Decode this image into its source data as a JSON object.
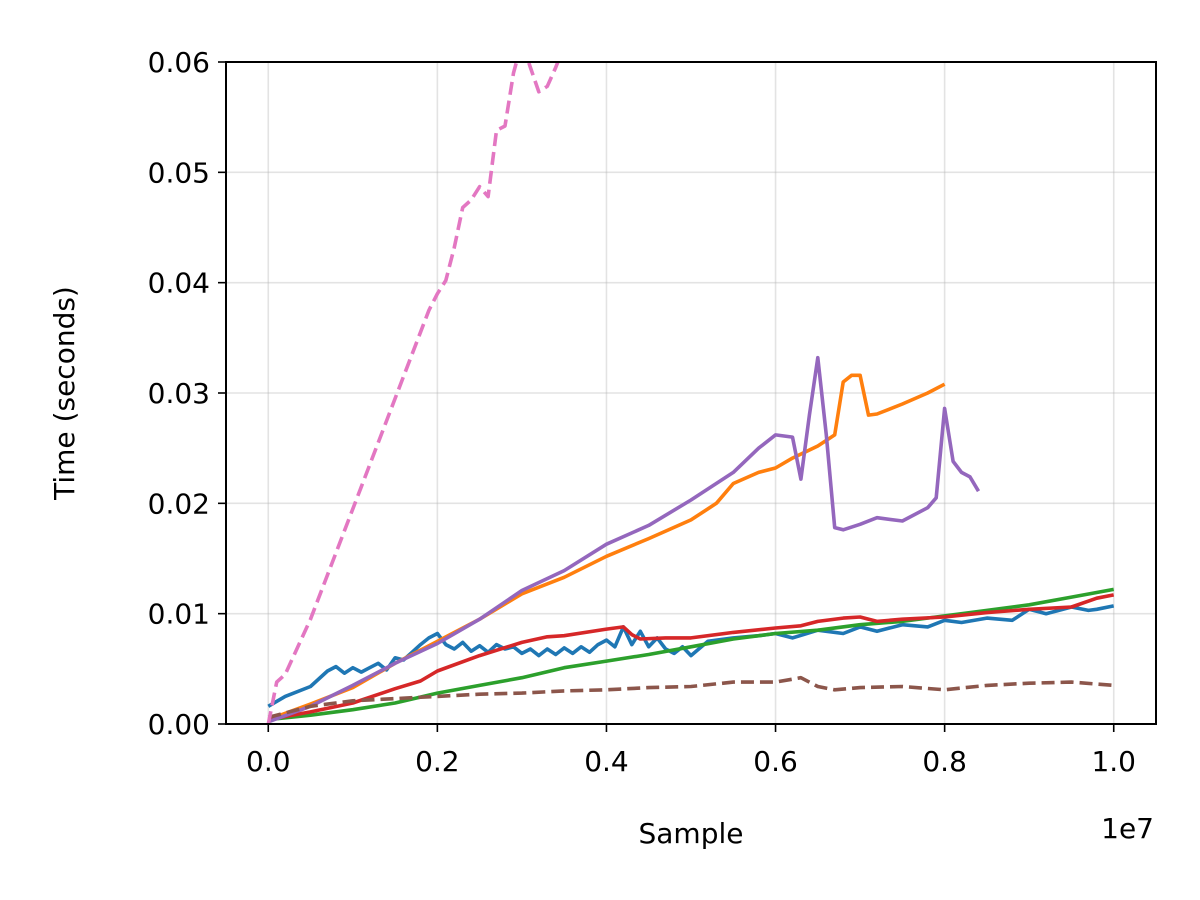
{
  "chart_data": {
    "type": "line",
    "title": "",
    "xlabel": "Sample",
    "ylabel": "Time (seconds)",
    "x_offset_label": "1e7",
    "xlim": [
      -0.05,
      1.05
    ],
    "ylim": [
      0.0,
      0.06
    ],
    "x_ticks": [
      0.0,
      0.2,
      0.4,
      0.6,
      0.8,
      1.0
    ],
    "x_tick_labels": [
      "0.0",
      "0.2",
      "0.4",
      "0.6",
      "0.8",
      "1.0"
    ],
    "y_ticks": [
      0.0,
      0.01,
      0.02,
      0.03,
      0.04,
      0.05,
      0.06
    ],
    "y_tick_labels": [
      "0.00",
      "0.01",
      "0.02",
      "0.03",
      "0.04",
      "0.05",
      "0.06"
    ],
    "grid": true,
    "legend": "none",
    "series": [
      {
        "color": "#1f77b4",
        "dash": "solid",
        "x": [
          0.0,
          0.02,
          0.05,
          0.07,
          0.08,
          0.09,
          0.1,
          0.11,
          0.12,
          0.13,
          0.14,
          0.15,
          0.16,
          0.17,
          0.18,
          0.19,
          0.2,
          0.21,
          0.22,
          0.23,
          0.24,
          0.25,
          0.26,
          0.27,
          0.28,
          0.29,
          0.3,
          0.31,
          0.32,
          0.33,
          0.34,
          0.35,
          0.36,
          0.37,
          0.38,
          0.39,
          0.4,
          0.41,
          0.42,
          0.43,
          0.44,
          0.45,
          0.46,
          0.47,
          0.48,
          0.49,
          0.5,
          0.52,
          0.55,
          0.58,
          0.6,
          0.62,
          0.65,
          0.68,
          0.7,
          0.72,
          0.75,
          0.78,
          0.8,
          0.82,
          0.85,
          0.88,
          0.9,
          0.92,
          0.95,
          0.97,
          0.98,
          1.0
        ],
        "y": [
          0.0016,
          0.0025,
          0.0034,
          0.0048,
          0.0052,
          0.0046,
          0.0051,
          0.0047,
          0.0051,
          0.0055,
          0.0049,
          0.006,
          0.0058,
          0.0065,
          0.0072,
          0.0078,
          0.0082,
          0.0072,
          0.0068,
          0.0074,
          0.0066,
          0.0071,
          0.0065,
          0.0072,
          0.0068,
          0.007,
          0.0064,
          0.0068,
          0.0062,
          0.0068,
          0.0063,
          0.0069,
          0.0064,
          0.007,
          0.0065,
          0.0072,
          0.0076,
          0.007,
          0.0088,
          0.0072,
          0.0084,
          0.007,
          0.0078,
          0.0068,
          0.0064,
          0.007,
          0.0062,
          0.0075,
          0.0078,
          0.008,
          0.0082,
          0.0078,
          0.0085,
          0.0082,
          0.0088,
          0.0084,
          0.009,
          0.0088,
          0.0094,
          0.0092,
          0.0096,
          0.0094,
          0.0104,
          0.01,
          0.0106,
          0.0103,
          0.0104,
          0.0107
        ]
      },
      {
        "color": "#ff7f0e",
        "dash": "solid",
        "x": [
          0.0,
          0.05,
          0.1,
          0.15,
          0.2,
          0.25,
          0.3,
          0.35,
          0.4,
          0.45,
          0.5,
          0.53,
          0.55,
          0.58,
          0.6,
          0.62,
          0.65,
          0.67,
          0.68,
          0.69,
          0.7,
          0.71,
          0.72,
          0.75,
          0.78,
          0.8
        ],
        "y": [
          0.0004,
          0.0018,
          0.0033,
          0.0055,
          0.0075,
          0.0095,
          0.0118,
          0.0133,
          0.0152,
          0.0168,
          0.0185,
          0.02,
          0.0218,
          0.0228,
          0.0232,
          0.0241,
          0.0252,
          0.0262,
          0.031,
          0.0316,
          0.0316,
          0.028,
          0.0281,
          0.029,
          0.03,
          0.0308
        ]
      },
      {
        "color": "#2ca02c",
        "dash": "solid",
        "x": [
          0.0,
          0.05,
          0.1,
          0.15,
          0.2,
          0.25,
          0.3,
          0.35,
          0.4,
          0.45,
          0.5,
          0.55,
          0.6,
          0.65,
          0.7,
          0.75,
          0.8,
          0.85,
          0.9,
          0.95,
          1.0
        ],
        "y": [
          0.0004,
          0.0008,
          0.0013,
          0.0019,
          0.0028,
          0.0035,
          0.0042,
          0.0051,
          0.0057,
          0.0063,
          0.007,
          0.0077,
          0.0082,
          0.0085,
          0.009,
          0.0093,
          0.0098,
          0.0103,
          0.0108,
          0.0115,
          0.0122
        ]
      },
      {
        "color": "#d62728",
        "dash": "solid",
        "x": [
          0.0,
          0.05,
          0.1,
          0.15,
          0.18,
          0.2,
          0.25,
          0.3,
          0.33,
          0.35,
          0.4,
          0.42,
          0.43,
          0.44,
          0.47,
          0.5,
          0.55,
          0.6,
          0.63,
          0.65,
          0.68,
          0.7,
          0.72,
          0.75,
          0.8,
          0.85,
          0.9,
          0.95,
          0.98,
          1.0
        ],
        "y": [
          0.0004,
          0.0011,
          0.0019,
          0.0032,
          0.0039,
          0.0048,
          0.0062,
          0.0074,
          0.0079,
          0.008,
          0.0086,
          0.0088,
          0.0081,
          0.0077,
          0.0078,
          0.0078,
          0.0083,
          0.0087,
          0.0089,
          0.0093,
          0.0096,
          0.0097,
          0.0093,
          0.0095,
          0.0097,
          0.0101,
          0.0104,
          0.0106,
          0.0114,
          0.0117
        ]
      },
      {
        "color": "#9467bd",
        "dash": "solid",
        "x": [
          0.0,
          0.05,
          0.1,
          0.15,
          0.2,
          0.25,
          0.3,
          0.35,
          0.4,
          0.45,
          0.5,
          0.55,
          0.58,
          0.6,
          0.62,
          0.63,
          0.64,
          0.65,
          0.66,
          0.67,
          0.68,
          0.7,
          0.72,
          0.75,
          0.78,
          0.79,
          0.8,
          0.81,
          0.82,
          0.83,
          0.84
        ],
        "y": [
          0.0002,
          0.0016,
          0.0035,
          0.0055,
          0.0073,
          0.0095,
          0.0121,
          0.0139,
          0.0163,
          0.018,
          0.0203,
          0.0228,
          0.025,
          0.0262,
          0.026,
          0.0222,
          0.028,
          0.0332,
          0.0262,
          0.0178,
          0.0176,
          0.0181,
          0.0187,
          0.0184,
          0.0196,
          0.0205,
          0.0286,
          0.0238,
          0.0228,
          0.0224,
          0.0211
        ]
      },
      {
        "color": "#8c564b",
        "dash": "dashed",
        "x": [
          0.0,
          0.05,
          0.1,
          0.15,
          0.2,
          0.25,
          0.3,
          0.35,
          0.4,
          0.45,
          0.5,
          0.55,
          0.6,
          0.63,
          0.65,
          0.67,
          0.7,
          0.75,
          0.8,
          0.85,
          0.9,
          0.95,
          1.0
        ],
        "y": [
          0.0006,
          0.0016,
          0.0021,
          0.0023,
          0.0025,
          0.0027,
          0.0028,
          0.003,
          0.0031,
          0.0033,
          0.0034,
          0.0038,
          0.0038,
          0.0042,
          0.0034,
          0.0031,
          0.0033,
          0.0034,
          0.0031,
          0.0035,
          0.0037,
          0.0038,
          0.0035
        ]
      },
      {
        "color": "#e377c2",
        "dash": "dashed",
        "x": [
          0.0,
          0.01,
          0.02,
          0.05,
          0.08,
          0.11,
          0.13,
          0.15,
          0.17,
          0.19,
          0.2,
          0.21,
          0.22,
          0.23,
          0.24,
          0.25,
          0.26,
          0.27,
          0.28,
          0.29,
          0.3,
          0.31,
          0.32,
          0.33,
          0.34,
          0.345
        ],
        "y": [
          0.0,
          0.0038,
          0.0045,
          0.0095,
          0.0155,
          0.0215,
          0.0255,
          0.0295,
          0.0335,
          0.0375,
          0.039,
          0.0402,
          0.0432,
          0.0468,
          0.0475,
          0.0487,
          0.0478,
          0.0538,
          0.0542,
          0.059,
          0.0618,
          0.0595,
          0.0573,
          0.0578,
          0.0595,
          0.0605
        ]
      }
    ]
  }
}
